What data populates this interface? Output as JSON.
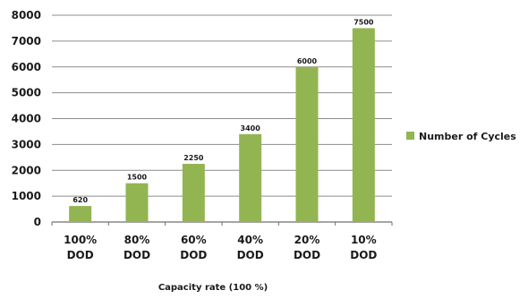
{
  "chart_data": {
    "type": "bar",
    "categories": [
      [
        "100%",
        "DOD"
      ],
      [
        "80%",
        "DOD"
      ],
      [
        "60%",
        "DOD"
      ],
      [
        "40%",
        "DOD"
      ],
      [
        "20%",
        "DOD"
      ],
      [
        "10%",
        "DOD"
      ]
    ],
    "series": [
      {
        "name": "Number of Cycles",
        "values": [
          620,
          1500,
          2250,
          3400,
          6000,
          7500
        ],
        "color": "#92b552"
      }
    ],
    "data_labels": [
      "620",
      "1500",
      "2250",
      "3400",
      "6000",
      "7500"
    ],
    "y_ticks": [
      0,
      1000,
      2000,
      3000,
      4000,
      5000,
      6000,
      7000,
      8000
    ],
    "ylim": [
      0,
      8000
    ],
    "xlabel": "Capacity rate (100 %)",
    "ylabel": "",
    "title": "",
    "grid": true,
    "grid_color": "#8c8c8c",
    "legend_position": "right"
  }
}
